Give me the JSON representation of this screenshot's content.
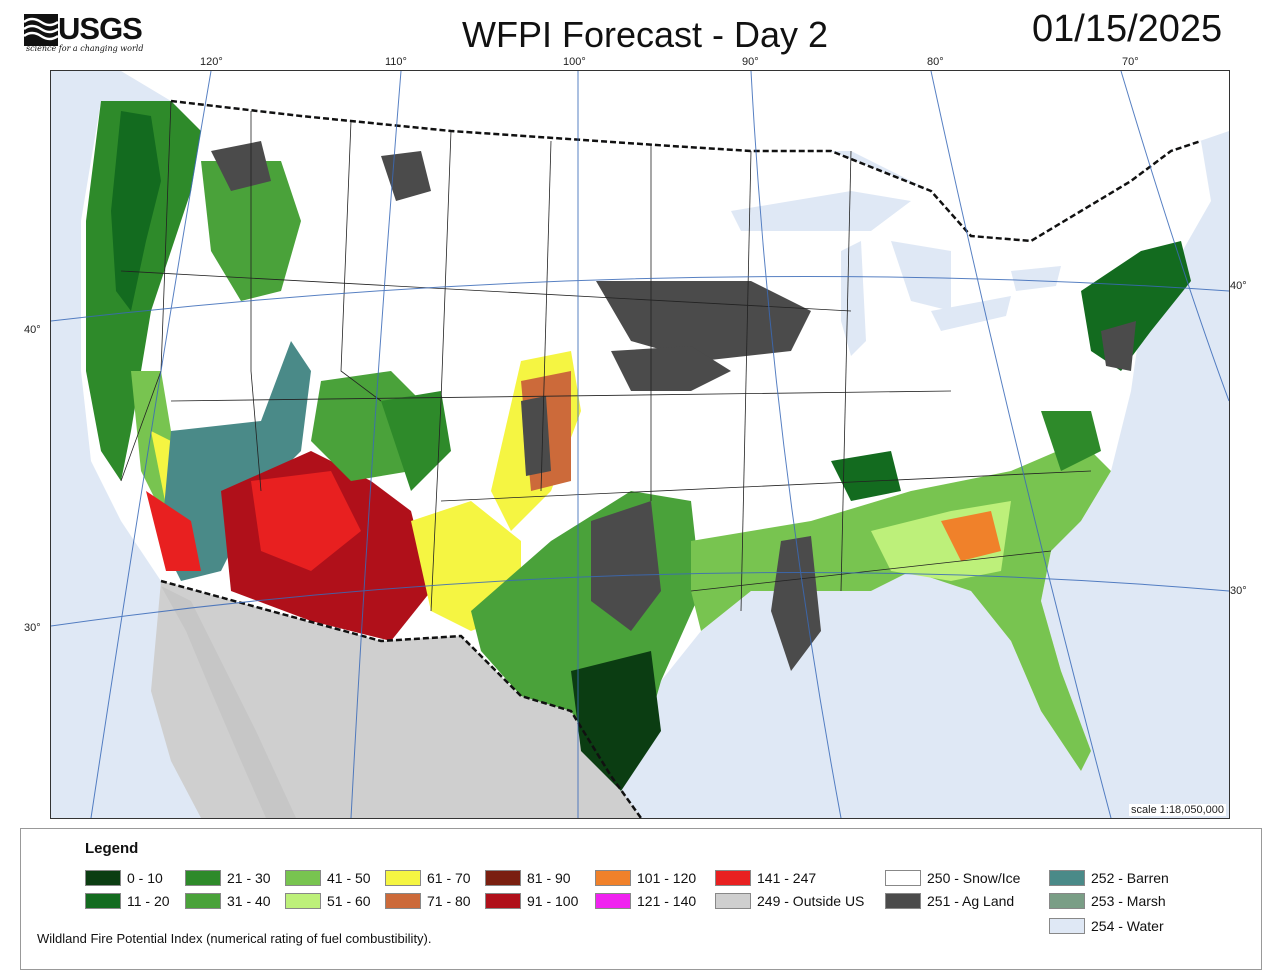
{
  "header": {
    "agency": "USGS",
    "tagline": "science for a changing world",
    "title": "WFPI Forecast - Day 2",
    "date": "01/15/2025"
  },
  "map": {
    "longitude_labels": [
      "120°",
      "110°",
      "100°",
      "90°",
      "80°",
      "70°"
    ],
    "latitude_labels_left": [
      "40°",
      "30°"
    ],
    "latitude_labels_right": [
      "40°",
      "30°"
    ],
    "scale": "scale 1:18,050,000",
    "colors": {
      "water": "#dfe8f5",
      "outside_us": "#cfcfcf",
      "snow": "#ffffff",
      "ag_land": "#4b4b4b",
      "barren": "#4a8a88",
      "state_border": "#222222"
    }
  },
  "legend": {
    "title": "Legend",
    "items": [
      {
        "label": "0 - 10",
        "color": "#0b3d12"
      },
      {
        "label": "11 - 20",
        "color": "#136b1f"
      },
      {
        "label": "21 - 30",
        "color": "#2e8a2a"
      },
      {
        "label": "31 - 40",
        "color": "#4aa23a"
      },
      {
        "label": "41 - 50",
        "color": "#78c450"
      },
      {
        "label": "51 - 60",
        "color": "#bdf07a"
      },
      {
        "label": "61 - 70",
        "color": "#f5f542"
      },
      {
        "label": "71 - 80",
        "color": "#cc6a3a"
      },
      {
        "label": "81 - 90",
        "color": "#7a1f10"
      },
      {
        "label": "91 - 100",
        "color": "#b0101a"
      },
      {
        "label": "101 - 120",
        "color": "#f0812a"
      },
      {
        "label": "121 - 140",
        "color": "#f022f0"
      },
      {
        "label": "141 - 247",
        "color": "#e82020"
      },
      {
        "label": "249 - Outside US",
        "color": "#cfcfcf"
      },
      {
        "label": "250 - Snow/Ice",
        "color": "#ffffff"
      },
      {
        "label": "251 - Ag Land",
        "color": "#4b4b4b"
      },
      {
        "label": "252 - Barren",
        "color": "#4a8a88"
      },
      {
        "label": "253 - Marsh",
        "color": "#7a9e86"
      },
      {
        "label": "254 - Water",
        "color": "#dfe8f5"
      }
    ],
    "footnote": "Wildland Fire Potential Index (numerical rating of fuel combustibility)."
  }
}
